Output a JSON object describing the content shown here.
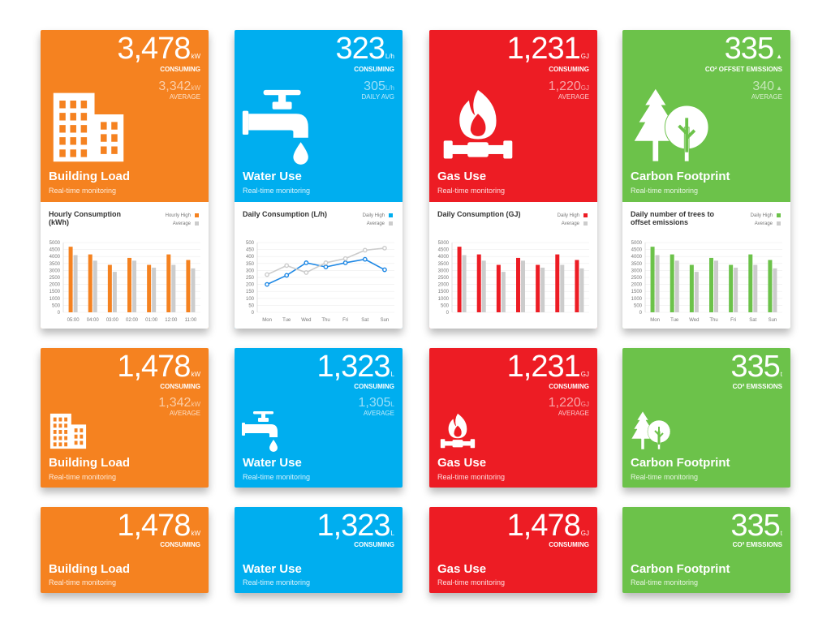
{
  "colors": {
    "orange": "#F58220",
    "blue": "#00AEEF",
    "red": "#ED1C24",
    "green": "#6CC24A",
    "avg_bar": "#CCCCCC"
  },
  "row1": {
    "building": {
      "value": "3,478",
      "unit": "kW",
      "label": "CONSUMING",
      "avg_value": "3,342",
      "avg_unit": "kW",
      "avg_label": "AVERAGE",
      "title": "Building Load",
      "subtitle": "Real-time monitoring",
      "icon": "building-icon",
      "chart": {
        "title": "Hourly Consumption (kWh)",
        "legend_high": "Hourly High",
        "legend_avg": "Average"
      }
    },
    "water": {
      "value": "323",
      "unit": "L/h",
      "label": "CONSUMING",
      "avg_value": "305",
      "avg_unit": "L/h",
      "avg_label": "DAILY AVG",
      "title": "Water Use",
      "subtitle": "Real-time monitoring",
      "icon": "faucet-icon",
      "chart": {
        "title": "Daily Consumption (L/h)",
        "legend_high": "Daily High",
        "legend_avg": "Average"
      }
    },
    "gas": {
      "value": "1,231",
      "unit": "GJ",
      "label": "CONSUMING",
      "avg_value": "1,220",
      "avg_unit": "GJ",
      "avg_label": "AVERAGE",
      "title": "Gas Use",
      "subtitle": "Real-time monitoring",
      "icon": "gas-flame-icon",
      "chart": {
        "title": "Daily Consumption (GJ)",
        "legend_high": "Daily High",
        "legend_avg": "Average"
      }
    },
    "carbon": {
      "value": "335",
      "unit": "",
      "label": "CO² OFFSET EMISSIONS",
      "avg_value": "340",
      "avg_unit": "",
      "avg_label": "AVERAGE",
      "title": "Carbon Footprint",
      "subtitle": "Real-time monitoring",
      "icon": "trees-icon",
      "chart": {
        "title": "Daily number of trees to offset emissions",
        "legend_high": "Daily High",
        "legend_avg": "Average"
      }
    }
  },
  "row2": {
    "building": {
      "value": "1,478",
      "unit": "kW",
      "label": "CONSUMING",
      "avg_value": "1,342",
      "avg_unit": "kW",
      "avg_label": "AVERAGE",
      "title": "Building Load",
      "subtitle": "Real-time monitoring"
    },
    "water": {
      "value": "1,323",
      "unit": "L",
      "label": "CONSUMING",
      "avg_value": "1,305",
      "avg_unit": "L",
      "avg_label": "AVERAGE",
      "title": "Water Use",
      "subtitle": "Real-time monitoring"
    },
    "gas": {
      "value": "1,231",
      "unit": "GJ",
      "label": "CONSUMING",
      "avg_value": "1,220",
      "avg_unit": "GJ",
      "avg_label": "AVERAGE",
      "title": "Gas Use",
      "subtitle": "Real-time monitoring"
    },
    "carbon": {
      "value": "335",
      "unit": "t",
      "label": "CO² EMISSIONS",
      "title": "Carbon Footprint",
      "subtitle": "Real-time monitoring"
    }
  },
  "row3": {
    "building": {
      "value": "1,478",
      "unit": "kW",
      "label": "CONSUMING",
      "title": "Building Load",
      "subtitle": "Real-time monitoring"
    },
    "water": {
      "value": "1,323",
      "unit": "L",
      "label": "CONSUMING",
      "title": "Water Use",
      "subtitle": "Real-time monitoring"
    },
    "gas": {
      "value": "1,478",
      "unit": "GJ",
      "label": "CONSUMING",
      "title": "Gas Use",
      "subtitle": "Real-time monitoring"
    },
    "carbon": {
      "value": "335",
      "unit": "t",
      "label": "CO² EMISSIONS",
      "title": "Carbon Footprint",
      "subtitle": "Real-time monitoring"
    }
  },
  "chart_data": [
    {
      "type": "bar",
      "chart": "building-hourly",
      "title": "Hourly Consumption (kWh)",
      "categories": [
        "05:00",
        "04:00",
        "03:00",
        "02:00",
        "01:00",
        "12:00",
        "11:00"
      ],
      "series": [
        {
          "name": "Hourly High",
          "values": [
            4700,
            4150,
            3400,
            3900,
            3400,
            4150,
            3750
          ]
        },
        {
          "name": "Average",
          "values": [
            4100,
            3700,
            2900,
            3700,
            3200,
            3400,
            3150
          ]
        }
      ],
      "yticks": [
        0,
        500,
        1000,
        1500,
        2000,
        2500,
        3000,
        3500,
        4000,
        4500,
        5000
      ],
      "ylim": [
        0,
        5000
      ]
    },
    {
      "type": "line",
      "chart": "water-daily",
      "title": "Daily Consumption (L/h)",
      "categories": [
        "Mon",
        "Tue",
        "Wed",
        "Thu",
        "Fri",
        "Sat",
        "Sun"
      ],
      "series": [
        {
          "name": "Daily High",
          "values": [
            200,
            265,
            355,
            325,
            355,
            380,
            305
          ]
        },
        {
          "name": "Average",
          "values": [
            270,
            335,
            285,
            355,
            385,
            445,
            460
          ]
        }
      ],
      "yticks": [
        0,
        50,
        100,
        150,
        200,
        250,
        300,
        350,
        400,
        450,
        500
      ],
      "ylim": [
        0,
        500
      ]
    },
    {
      "type": "bar",
      "chart": "gas-daily",
      "title": "Daily Consumption (GJ)",
      "categories": [
        "",
        "",
        "",
        "",
        "",
        "",
        ""
      ],
      "series": [
        {
          "name": "Daily High",
          "values": [
            4700,
            4150,
            3400,
            3900,
            3400,
            4150,
            3750
          ]
        },
        {
          "name": "Average",
          "values": [
            4100,
            3700,
            2900,
            3700,
            3200,
            3400,
            3150
          ]
        }
      ],
      "yticks": [
        0,
        500,
        1000,
        1500,
        2000,
        2500,
        3000,
        3500,
        4000,
        4500,
        5000
      ],
      "ylim": [
        0,
        5000
      ]
    },
    {
      "type": "bar",
      "chart": "carbon-trees",
      "title": "Daily number of trees to offset emissions",
      "categories": [
        "Mon",
        "Tue",
        "Wed",
        "Thu",
        "Fri",
        "Sat",
        "Sun"
      ],
      "series": [
        {
          "name": "Daily High",
          "values": [
            4700,
            4150,
            3400,
            3900,
            3400,
            4150,
            3750
          ]
        },
        {
          "name": "Average",
          "values": [
            4100,
            3700,
            2900,
            3700,
            3200,
            3400,
            3150
          ]
        }
      ],
      "yticks": [
        0,
        500,
        1000,
        1500,
        2000,
        2500,
        3000,
        3500,
        4000,
        4500,
        5000
      ],
      "ylim": [
        0,
        5000
      ]
    }
  ]
}
